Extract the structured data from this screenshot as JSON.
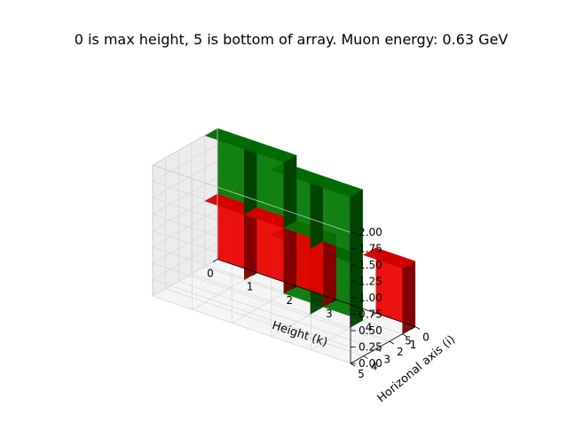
{
  "chart_data": {
    "type": "voxel3d",
    "title": "0 is max height, 5 is bottom of array. Muon energy: 0.63 GeV",
    "xlabel": "Height (k)",
    "ylabel": "Horizonal axis (i)",
    "zlabel": "",
    "xlim": [
      0,
      5
    ],
    "ylim": [
      0,
      5
    ],
    "zlim": [
      0,
      2
    ],
    "x_ticks": [
      "0",
      "1",
      "2",
      "3",
      "4",
      "5"
    ],
    "y_ticks": [
      "0",
      "1",
      "2",
      "3",
      "4",
      "5"
    ],
    "z_ticks": [
      "0.00",
      "0.25",
      "0.50",
      "0.75",
      "1.00",
      "1.25",
      "1.50",
      "1.75",
      "2.00"
    ],
    "grid": true,
    "colors": {
      "red": "#ff0000",
      "green": "#008000"
    },
    "voxels": [
      {
        "x": 0,
        "y": 0,
        "z": 0,
        "color": "red"
      },
      {
        "x": 1,
        "y": 0,
        "z": 0,
        "color": "red"
      },
      {
        "x": 2,
        "y": 0,
        "z": 0,
        "color": "red"
      },
      {
        "x": 4,
        "y": 0,
        "z": 0,
        "color": "red"
      },
      {
        "x": 0,
        "y": 0,
        "z": 1,
        "color": "green"
      },
      {
        "x": 1,
        "y": 0,
        "z": 1,
        "color": "green"
      },
      {
        "x": 2,
        "y": 1,
        "z": 0,
        "color": "green"
      },
      {
        "x": 3,
        "y": 1,
        "z": 0,
        "color": "green"
      },
      {
        "x": 2,
        "y": 1,
        "z": 1,
        "color": "green"
      },
      {
        "x": 3,
        "y": 1,
        "z": 1,
        "color": "green"
      }
    ]
  }
}
